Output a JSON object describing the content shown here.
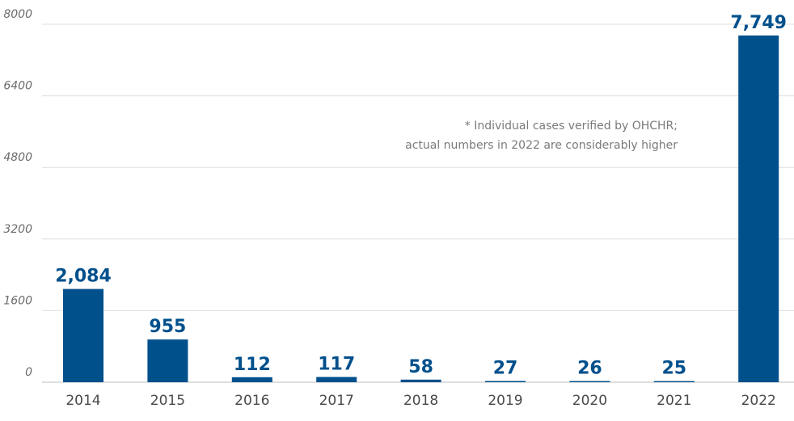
{
  "colors": {
    "bar": "#00508c",
    "label": "#00508c"
  },
  "chart_data": {
    "type": "bar",
    "categories": [
      "2014",
      "2015",
      "2016",
      "2017",
      "2018",
      "2019",
      "2020",
      "2021",
      "2022"
    ],
    "values": [
      2084,
      955,
      112,
      117,
      58,
      27,
      26,
      25,
      7749
    ],
    "data_labels": [
      "2,084",
      "955",
      "112",
      "117",
      "58",
      "27",
      "26",
      "25",
      "7,749"
    ],
    "yticks": [
      0,
      1600,
      3200,
      4800,
      6400,
      8000
    ],
    "ylim": [
      0,
      8000
    ],
    "grid": true,
    "annotation": {
      "line1": "* Individual cases verified by OHCHR;",
      "line2": "actual numbers in 2022 are considerably higher"
    }
  }
}
